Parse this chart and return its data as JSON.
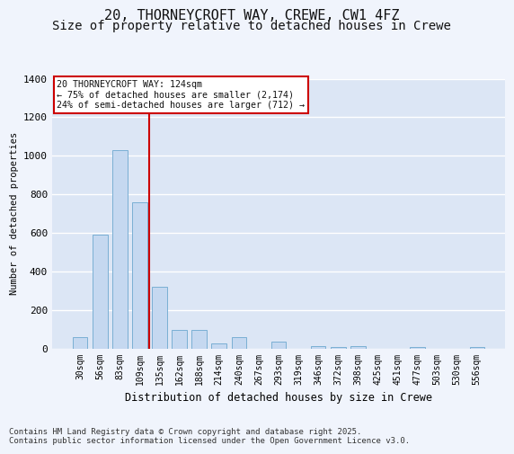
{
  "title_line1": "20, THORNEYCROFT WAY, CREWE, CW1 4FZ",
  "title_line2": "Size of property relative to detached houses in Crewe",
  "xlabel": "Distribution of detached houses by size in Crewe",
  "ylabel": "Number of detached properties",
  "categories": [
    "30sqm",
    "56sqm",
    "83sqm",
    "109sqm",
    "135sqm",
    "162sqm",
    "188sqm",
    "214sqm",
    "240sqm",
    "267sqm",
    "293sqm",
    "319sqm",
    "346sqm",
    "372sqm",
    "398sqm",
    "425sqm",
    "451sqm",
    "477sqm",
    "503sqm",
    "530sqm",
    "556sqm"
  ],
  "values": [
    60,
    590,
    1030,
    760,
    320,
    95,
    95,
    25,
    60,
    0,
    35,
    0,
    10,
    5,
    10,
    0,
    0,
    5,
    0,
    0,
    5
  ],
  "bar_color": "#c5d8f0",
  "bar_edge_color": "#7aafd4",
  "vline_x": 3.5,
  "vline_color": "#cc0000",
  "annotation_line1": "20 THORNEYCROFT WAY: 124sqm",
  "annotation_line2": "← 75% of detached houses are smaller (2,174)",
  "annotation_line3": "24% of semi-detached houses are larger (712) →",
  "annotation_box_color": "#cc0000",
  "ylim": [
    0,
    1400
  ],
  "yticks": [
    0,
    200,
    400,
    600,
    800,
    1000,
    1200,
    1400
  ],
  "background_color": "#dce6f5",
  "plot_bg_color": "#dce6f5",
  "fig_bg_color": "#f0f4fc",
  "grid_color": "#ffffff",
  "footer_text": "Contains HM Land Registry data © Crown copyright and database right 2025.\nContains public sector information licensed under the Open Government Licence v3.0.",
  "title_fontsize": 11,
  "subtitle_fontsize": 10,
  "footer_fontsize": 6.5,
  "bar_width": 0.75
}
